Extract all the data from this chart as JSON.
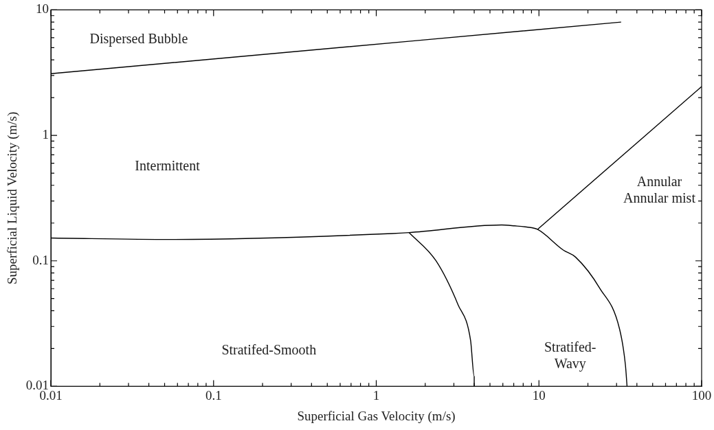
{
  "chart_data": {
    "type": "line",
    "xlabel": "Superficial Gas Velocity (m/s)",
    "ylabel": "Superficial Liquid Velocity (m/s)",
    "log": "xy",
    "grid": false,
    "legend": false,
    "marker": "none",
    "line_style": "solid",
    "xlim": [
      0.01,
      100
    ],
    "ylim": [
      0.01,
      10
    ],
    "xticks": [
      0.01,
      {
        "value": 0.02,
        "label": null
      },
      {
        "value": 0.03,
        "label": null
      },
      {
        "value": 0.04,
        "label": null
      },
      {
        "value": 0.05,
        "label": null
      },
      {
        "value": 0.06,
        "label": null
      },
      {
        "value": 0.07,
        "label": null
      },
      {
        "value": 0.08,
        "label": null
      },
      {
        "value": 0.09,
        "label": null
      },
      0.1,
      {
        "value": 0.2,
        "label": null
      },
      {
        "value": 0.3,
        "label": null
      },
      {
        "value": 0.4,
        "label": null
      },
      {
        "value": 0.5,
        "label": null
      },
      {
        "value": 0.6,
        "label": null
      },
      {
        "value": 0.7,
        "label": null
      },
      {
        "value": 0.8,
        "label": null
      },
      {
        "value": 0.9,
        "label": null
      },
      1,
      {
        "value": 2,
        "label": null
      },
      {
        "value": 3,
        "label": null
      },
      {
        "value": 4,
        "label": null
      },
      {
        "value": 5,
        "label": null
      },
      {
        "value": 6,
        "label": null
      },
      {
        "value": 7,
        "label": null
      },
      {
        "value": 8,
        "label": null
      },
      {
        "value": 9,
        "label": null
      },
      10,
      {
        "value": 20,
        "label": null
      },
      {
        "value": 30,
        "label": null
      },
      {
        "value": 40,
        "label": null
      },
      {
        "value": 50,
        "label": null
      },
      {
        "value": 60,
        "label": null
      },
      {
        "value": 70,
        "label": null
      },
      {
        "value": 80,
        "label": null
      },
      {
        "value": 90,
        "label": null
      },
      100
    ],
    "yticks": [
      0.01,
      {
        "value": 0.02,
        "label": null
      },
      {
        "value": 0.03,
        "label": null
      },
      {
        "value": 0.04,
        "label": null
      },
      {
        "value": 0.05,
        "label": null
      },
      {
        "value": 0.06,
        "label": null
      },
      {
        "value": 0.07,
        "label": null
      },
      {
        "value": 0.08,
        "label": null
      },
      {
        "value": 0.09,
        "label": null
      },
      0.1,
      {
        "value": 0.2,
        "label": null
      },
      {
        "value": 0.3,
        "label": null
      },
      {
        "value": 0.4,
        "label": null
      },
      {
        "value": 0.5,
        "label": null
      },
      {
        "value": 0.6,
        "label": null
      },
      {
        "value": 0.7,
        "label": null
      },
      {
        "value": 0.8,
        "label": null
      },
      {
        "value": 0.9,
        "label": null
      },
      1,
      {
        "value": 2,
        "label": null
      },
      {
        "value": 3,
        "label": null
      },
      {
        "value": 4,
        "label": null
      },
      {
        "value": 5,
        "label": null
      },
      {
        "value": 6,
        "label": null
      },
      {
        "value": 7,
        "label": null
      },
      {
        "value": 8,
        "label": null
      },
      {
        "value": 9,
        "label": null
      },
      10
    ],
    "series": [
      {
        "color": "#000000",
        "x": [
          0.01,
          32
        ],
        "values": [
          3.1,
          8.0
        ]
      },
      {
        "color": "#000000",
        "x": [
          0.01,
          0.055,
          1.25,
          1.59,
          5.9,
          7.1,
          8.4,
          9.8,
          14.1,
          16.8,
          23.6,
          31.3,
          34,
          34.8
        ],
        "values": [
          0.152,
          0.148,
          0.165,
          0.168,
          0.193,
          0.19,
          0.186,
          0.178,
          0.122,
          0.107,
          0.0607,
          0.0286,
          0.0148,
          0.01
        ]
      },
      {
        "color": "#000000",
        "x": [
          9.8,
          100
        ],
        "values": [
          0.178,
          2.45
        ]
      },
      {
        "color": "#000000",
        "x": [
          1.59,
          2.33,
          3.18,
          3.8,
          4.0,
          4.0
        ],
        "values": [
          0.168,
          0.1,
          0.0448,
          0.0232,
          0.012,
          0.01
        ]
      }
    ],
    "annotations": [
      "Dispersed Bubble",
      "Intermittent",
      "Annular\nAnnular mist",
      "Stratifed-Smooth",
      "Stratifed-\nWavy"
    ]
  }
}
